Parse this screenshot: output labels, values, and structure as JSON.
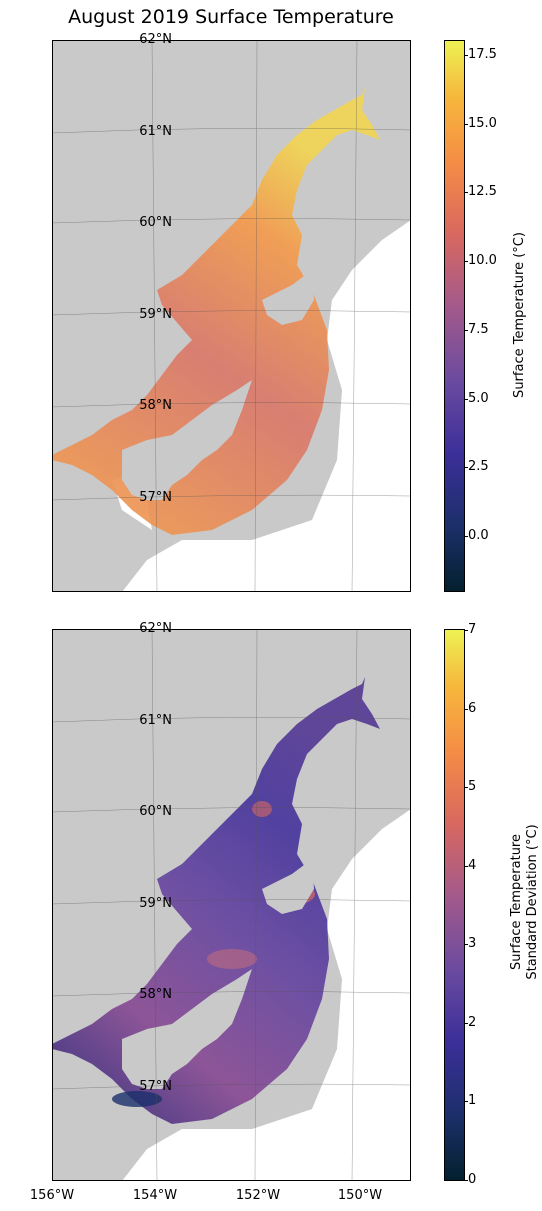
{
  "title": "August 2019 Surface Temperature",
  "lat_labels": [
    "62°N",
    "61°N",
    "60°N",
    "59°N",
    "58°N",
    "57°N"
  ],
  "lon_labels": [
    "156°W",
    "154°W",
    "152°W",
    "150°W"
  ],
  "top_colorbar": {
    "label": "Surface Temperature (°C)",
    "ticks": [
      "17.5",
      "15.0",
      "12.5",
      "10.0",
      "7.5",
      "5.0",
      "2.5",
      "0.0"
    ],
    "range": [
      -2,
      18
    ]
  },
  "bottom_colorbar": {
    "label_line1": "Surface Temperature",
    "label_line2": "Standard Deviation (°C)",
    "ticks": [
      "7",
      "6",
      "5",
      "4",
      "3",
      "2",
      "1",
      "0"
    ],
    "range": [
      0,
      7
    ]
  },
  "colors": {
    "land": "#c9c9c9",
    "ocean_background": "#ffffff",
    "colormap": [
      "#03202e",
      "#1c2f6b",
      "#3b2f99",
      "#6a4aa0",
      "#a45a8a",
      "#d9685f",
      "#f58d45",
      "#f6b83c",
      "#eef253"
    ]
  }
}
